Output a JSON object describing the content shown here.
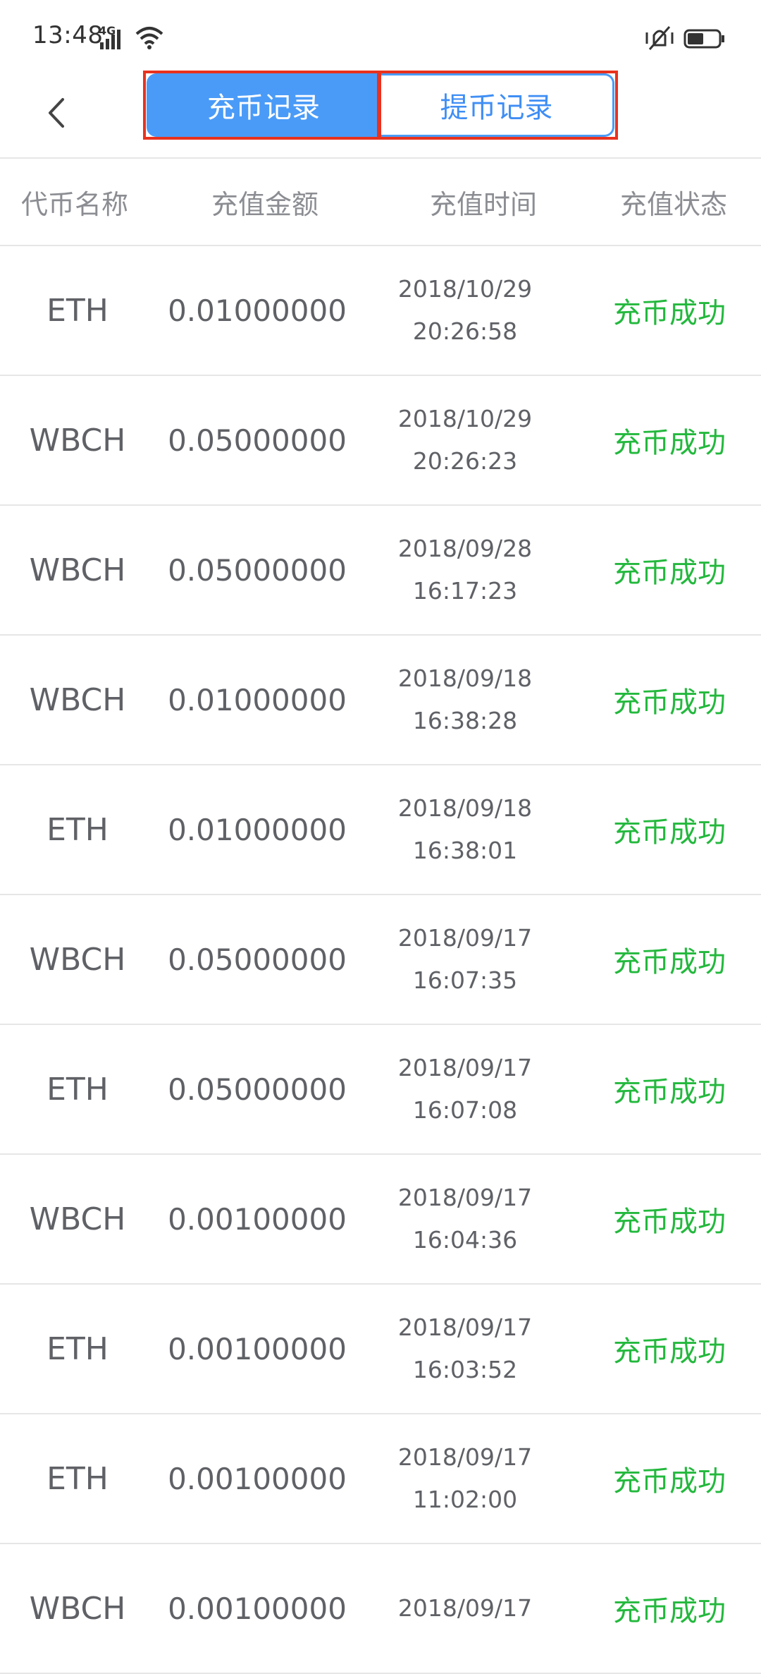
{
  "status_bar": {
    "time": "13:48",
    "network": "4G"
  },
  "header": {
    "tabs": [
      {
        "label": "充币记录",
        "active": true
      },
      {
        "label": "提币记录",
        "active": false
      }
    ]
  },
  "columns": [
    "代币名称",
    "充值金额",
    "充值时间",
    "充值状态"
  ],
  "records": [
    {
      "name": "ETH",
      "amount": "0.01000000",
      "date": "2018/10/29",
      "time": "20:26:58",
      "status": "充币成功"
    },
    {
      "name": "WBCH",
      "amount": "0.05000000",
      "date": "2018/10/29",
      "time": "20:26:23",
      "status": "充币成功"
    },
    {
      "name": "WBCH",
      "amount": "0.05000000",
      "date": "2018/09/28",
      "time": "16:17:23",
      "status": "充币成功"
    },
    {
      "name": "WBCH",
      "amount": "0.01000000",
      "date": "2018/09/18",
      "time": "16:38:28",
      "status": "充币成功"
    },
    {
      "name": "ETH",
      "amount": "0.01000000",
      "date": "2018/09/18",
      "time": "16:38:01",
      "status": "充币成功"
    },
    {
      "name": "WBCH",
      "amount": "0.05000000",
      "date": "2018/09/17",
      "time": "16:07:35",
      "status": "充币成功"
    },
    {
      "name": "ETH",
      "amount": "0.05000000",
      "date": "2018/09/17",
      "time": "16:07:08",
      "status": "充币成功"
    },
    {
      "name": "WBCH",
      "amount": "0.00100000",
      "date": "2018/09/17",
      "time": "16:04:36",
      "status": "充币成功"
    },
    {
      "name": "ETH",
      "amount": "0.00100000",
      "date": "2018/09/17",
      "time": "16:03:52",
      "status": "充币成功"
    },
    {
      "name": "ETH",
      "amount": "0.00100000",
      "date": "2018/09/17",
      "time": "11:02:00",
      "status": "充币成功"
    },
    {
      "name": "WBCH",
      "amount": "0.00100000",
      "date": "2018/09/17",
      "time": "",
      "status": "充币成功"
    }
  ],
  "colors": {
    "accent": "#4a9bf7",
    "success": "#23b83d",
    "highlight": "#e8321e"
  }
}
